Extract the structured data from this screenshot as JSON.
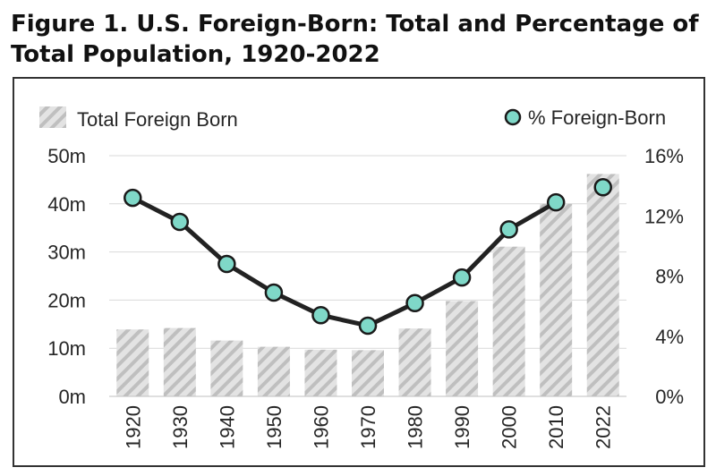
{
  "title": "Figure 1. U.S. Foreign-Born: Total and Percentage of Total Population, 1920-2022",
  "colors": {
    "bar_hatch": "#bfbfbf",
    "bar_bg": "#e3e3e3",
    "line": "#222222",
    "marker_fill": "#7fd8c8",
    "marker_stroke": "#1a1a1a"
  },
  "chart_data": {
    "type": "bar",
    "categories": [
      "1920",
      "1930",
      "1940",
      "1950",
      "1960",
      "1970",
      "1980",
      "1990",
      "2000",
      "2010",
      "2022"
    ],
    "series": [
      {
        "name": "Total Foreign Born",
        "type": "bar",
        "axis": "left",
        "values": [
          13.9,
          14.2,
          11.6,
          10.3,
          9.7,
          9.6,
          14.1,
          19.8,
          31.1,
          40.0,
          46.2
        ]
      },
      {
        "name": "% Foreign-Born",
        "type": "line",
        "axis": "right",
        "values": [
          13.2,
          11.6,
          8.8,
          6.9,
          5.4,
          4.7,
          6.2,
          7.9,
          11.1,
          12.9,
          13.9
        ]
      }
    ],
    "y_left": {
      "ticks": [
        "0m",
        "10m",
        "20m",
        "30m",
        "40m",
        "50m"
      ],
      "ylim": [
        0,
        50
      ]
    },
    "y_right": {
      "ticks": [
        "0%",
        "4%",
        "8%",
        "12%",
        "16%"
      ],
      "ylim": [
        0,
        16
      ]
    },
    "legend": [
      "Total Foreign Born",
      "% Foreign-Born"
    ],
    "legend_position": "top",
    "grid": true
  }
}
